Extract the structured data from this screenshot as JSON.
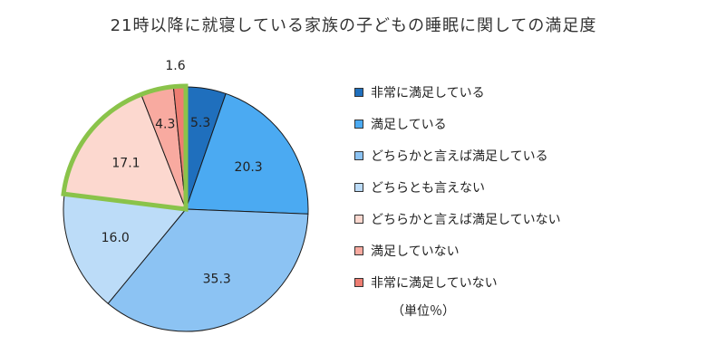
{
  "chart_data": {
    "type": "pie",
    "title": "21時以降に就寝している家族の子どもの睡眠に関しての満足度",
    "unit_note": "（単位％）",
    "legend_position": "right",
    "slices": [
      {
        "label": "非常に満足している",
        "value": 5.3,
        "value_label": "5.3",
        "color": "#1f6fbd"
      },
      {
        "label": "満足している",
        "value": 20.3,
        "value_label": "20.3",
        "color": "#4baaf2"
      },
      {
        "label": "どちらかと言えば満足している",
        "value": 35.3,
        "value_label": "35.3",
        "color": "#8cc3f3"
      },
      {
        "label": "どちらとも言えない",
        "value": 16.0,
        "value_label": "16.0",
        "color": "#bcdcf8"
      },
      {
        "label": "どちらかと言えば満足していない",
        "value": 17.1,
        "value_label": "17.1",
        "color": "#fcd8cf"
      },
      {
        "label": "満足していない",
        "value": 4.3,
        "value_label": "4.3",
        "color": "#f8aaa0"
      },
      {
        "label": "非常に満足していない",
        "value": 1.6,
        "value_label": "1.6",
        "color": "#ee7d72"
      }
    ],
    "highlight": {
      "slices": [
        4,
        5,
        6
      ],
      "color": "#8ac34a"
    }
  }
}
